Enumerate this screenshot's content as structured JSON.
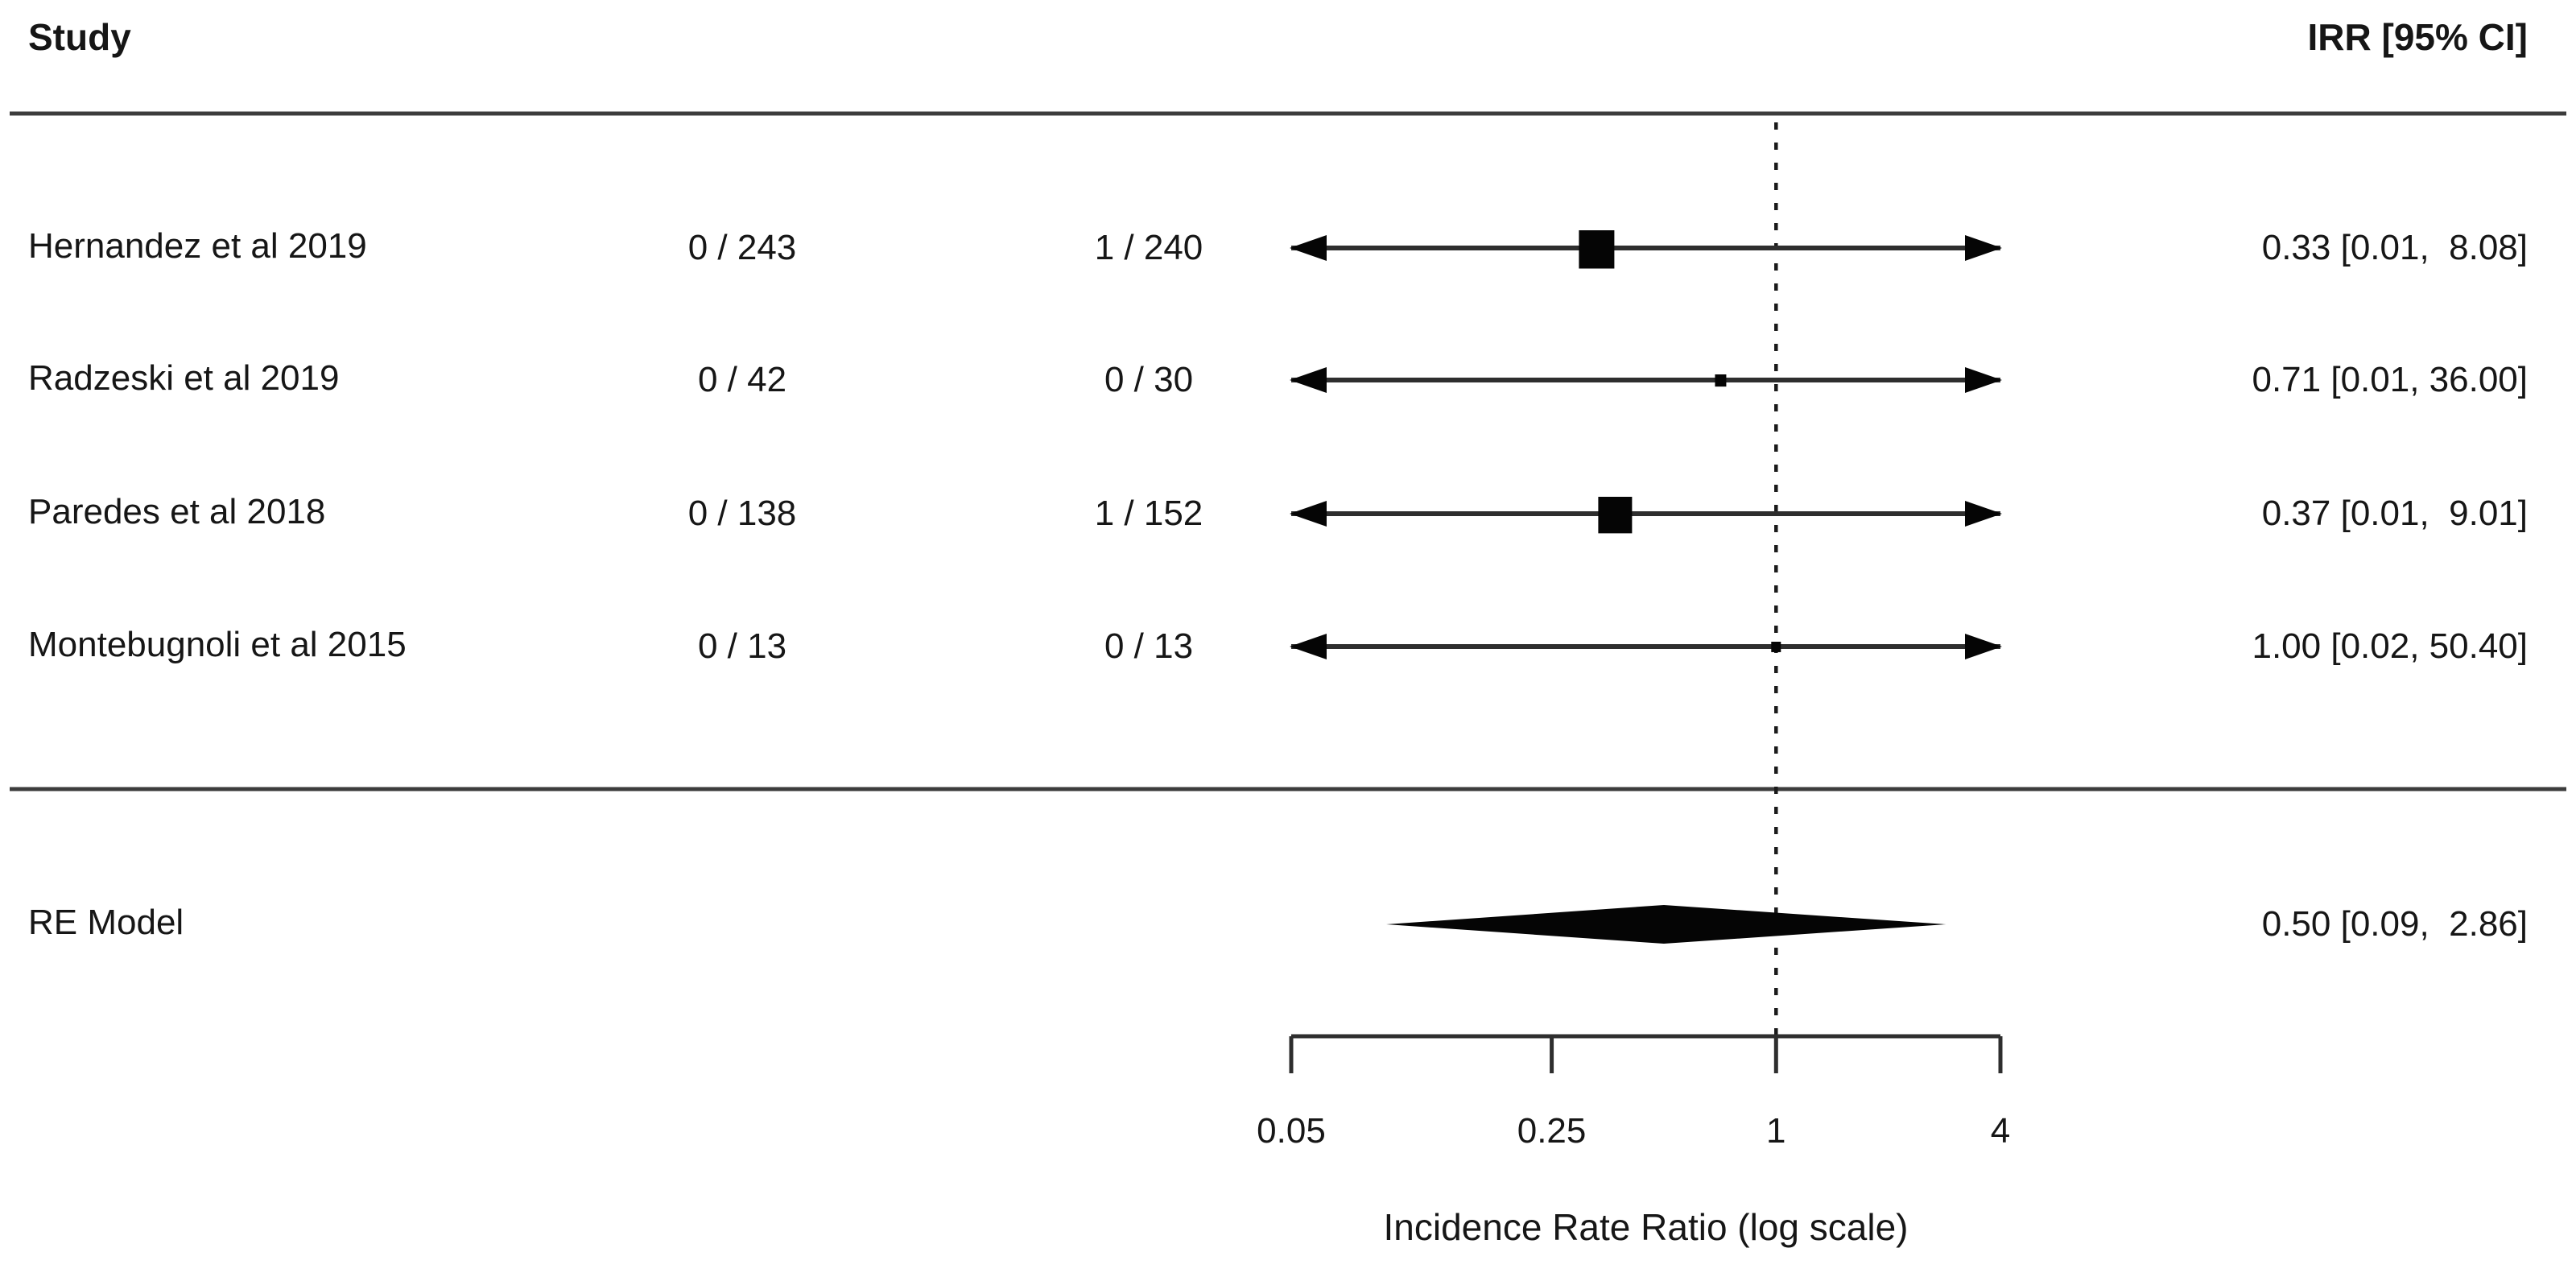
{
  "header": {
    "study_col": "Study",
    "effect_col": "IRR [95% CI]"
  },
  "chart_data": {
    "type": "forest",
    "title": "",
    "axis": {
      "scale": "log",
      "xlim": [
        0.05,
        4
      ],
      "ticks": [
        0.05,
        0.25,
        1,
        4
      ],
      "tick_labels": [
        "0.05",
        "0.25",
        "1",
        "4"
      ],
      "label": "Incidence Rate Ratio (log scale)",
      "reference_line": 1
    },
    "studies": [
      {
        "label": "Hernandez et al 2019",
        "count1": "0 / 243",
        "count2": "1 / 240",
        "est": 0.33,
        "lo": 0.01,
        "hi": 8.08,
        "annotation": "0.33 [0.01,  8.08]",
        "marker_size": 44
      },
      {
        "label": "Radzeski et al 2019",
        "count1": "0 / 42",
        "count2": "0 / 30",
        "est": 0.71,
        "lo": 0.01,
        "hi": 36.0,
        "annotation": "0.71 [0.01, 36.00]",
        "marker_size": 14
      },
      {
        "label": "Paredes et al 2018",
        "count1": "0 / 138",
        "count2": "1 / 152",
        "est": 0.37,
        "lo": 0.01,
        "hi": 9.01,
        "annotation": "0.37 [0.01,  9.01]",
        "marker_size": 42
      },
      {
        "label": "Montebugnoli et al 2015",
        "count1": "0 / 13",
        "count2": "0 / 13",
        "est": 1.0,
        "lo": 0.02,
        "hi": 50.4,
        "annotation": "1.00 [0.02, 50.40]",
        "marker_size": 12
      }
    ],
    "summary": {
      "label": "RE Model",
      "est": 0.5,
      "lo": 0.09,
      "hi": 2.86,
      "annotation": "0.50 [0.09,  2.86]"
    }
  },
  "colors": {
    "text": "#161616",
    "rule": "#3c3c3c",
    "ci_line": "#2e2e2e",
    "marker": "#050505",
    "reference": "#1a1a1a"
  }
}
